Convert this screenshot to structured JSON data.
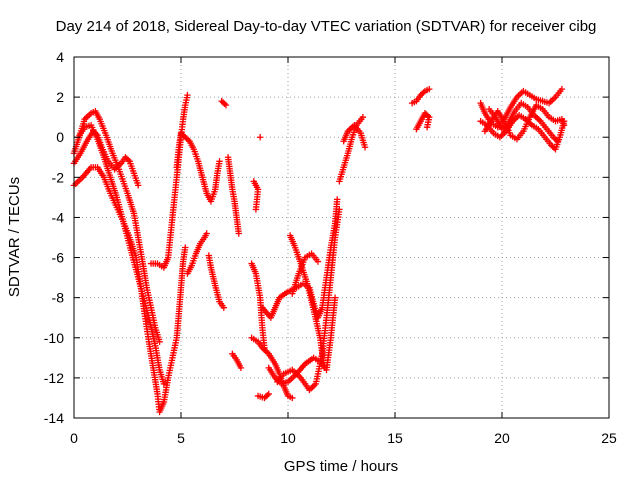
{
  "chart_data": {
    "type": "scatter",
    "title": "Day 214 of 2018, Sidereal Day-to-day VTEC variation (SDTVAR) for receiver cibg",
    "xlabel": "GPS time / hours",
    "ylabel": "SDTVAR / TECUs",
    "xlim": [
      0,
      25
    ],
    "ylim": [
      -14,
      4
    ],
    "xticks": [
      "0",
      "5",
      "10",
      "15",
      "20",
      "25"
    ],
    "yticks": [
      "-14",
      "-12",
      "-10",
      "-8",
      "-6",
      "-4",
      "-2",
      "0",
      "2",
      "4"
    ],
    "grid": true,
    "marker": "+",
    "series": [
      {
        "name": "SDTVAR",
        "color": "#ff0000",
        "traces": [
          [
            [
              0.0,
              -1.3
            ],
            [
              0.3,
              -0.8
            ],
            [
              0.6,
              -0.2
            ],
            [
              0.9,
              0.3
            ],
            [
              1.1,
              0.1
            ],
            [
              1.3,
              -0.5
            ],
            [
              1.6,
              -1.2
            ],
            [
              1.9,
              -1.6
            ],
            [
              2.2,
              -1.3
            ],
            [
              2.4,
              -1.0
            ],
            [
              2.6,
              -1.2
            ],
            [
              2.8,
              -1.8
            ],
            [
              3.0,
              -2.4
            ]
          ],
          [
            [
              0.0,
              -0.8
            ],
            [
              0.3,
              0.2
            ],
            [
              0.5,
              0.9
            ],
            [
              0.8,
              1.2
            ],
            [
              1.0,
              1.3
            ],
            [
              1.2,
              0.9
            ],
            [
              1.5,
              0.1
            ],
            [
              1.8,
              -0.8
            ],
            [
              2.1,
              -1.6
            ],
            [
              2.5,
              -2.8
            ],
            [
              2.8,
              -3.8
            ],
            [
              3.0,
              -5.0
            ],
            [
              3.2,
              -6.2
            ],
            [
              3.4,
              -7.5
            ],
            [
              3.6,
              -8.5
            ],
            [
              3.8,
              -9.5
            ],
            [
              4.0,
              -10.2
            ]
          ],
          [
            [
              0.0,
              -2.4
            ],
            [
              0.4,
              -2.0
            ],
            [
              0.8,
              -1.5
            ],
            [
              1.1,
              -1.5
            ],
            [
              1.4,
              -2.0
            ],
            [
              1.7,
              -2.8
            ],
            [
              2.0,
              -3.5
            ],
            [
              2.3,
              -4.2
            ],
            [
              2.6,
              -5.0
            ],
            [
              2.9,
              -6.0
            ],
            [
              3.1,
              -7.3
            ],
            [
              3.3,
              -8.8
            ],
            [
              3.5,
              -10.2
            ],
            [
              3.7,
              -11.5
            ],
            [
              3.9,
              -12.8
            ],
            [
              4.0,
              -13.7
            ],
            [
              4.2,
              -13.2
            ],
            [
              4.4,
              -12.0
            ],
            [
              4.6,
              -11.0
            ],
            [
              4.8,
              -10.0
            ],
            [
              4.9,
              -8.8
            ],
            [
              5.0,
              -7.5
            ],
            [
              5.1,
              -6.2
            ],
            [
              5.2,
              -5.5
            ]
          ],
          [
            [
              0.2,
              0.0
            ],
            [
              0.5,
              0.5
            ],
            [
              0.8,
              0.6
            ],
            [
              1.1,
              -0.1
            ],
            [
              1.4,
              -1.0
            ],
            [
              1.7,
              -2.0
            ],
            [
              2.0,
              -3.0
            ],
            [
              2.3,
              -4.2
            ],
            [
              2.6,
              -5.4
            ],
            [
              2.9,
              -6.6
            ],
            [
              3.2,
              -7.8
            ],
            [
              3.5,
              -9.0
            ],
            [
              3.8,
              -10.4
            ],
            [
              4.0,
              -11.6
            ],
            [
              4.2,
              -12.3
            ]
          ],
          [
            [
              3.6,
              -6.3
            ],
            [
              3.9,
              -6.3
            ],
            [
              4.2,
              -6.5
            ],
            [
              4.4,
              -6.0
            ],
            [
              4.5,
              -5.0
            ],
            [
              4.6,
              -4.0
            ],
            [
              4.7,
              -3.0
            ],
            [
              4.8,
              -2.0
            ],
            [
              4.9,
              -1.0
            ],
            [
              5.0,
              0.0
            ],
            [
              5.1,
              0.9
            ],
            [
              5.2,
              1.6
            ],
            [
              5.3,
              2.1
            ]
          ],
          [
            [
              4.8,
              -1.5
            ],
            [
              4.9,
              -0.5
            ],
            [
              5.0,
              0.2
            ],
            [
              5.2,
              0.0
            ],
            [
              5.4,
              -0.2
            ],
            [
              5.6,
              -0.6
            ],
            [
              5.8,
              -1.2
            ],
            [
              6.0,
              -2.0
            ],
            [
              6.2,
              -2.8
            ],
            [
              6.4,
              -3.2
            ],
            [
              6.6,
              -2.6
            ],
            [
              6.7,
              -1.8
            ],
            [
              6.8,
              -1.2
            ]
          ],
          [
            [
              5.3,
              -6.8
            ],
            [
              5.5,
              -6.4
            ],
            [
              5.7,
              -5.8
            ],
            [
              5.9,
              -5.3
            ],
            [
              6.1,
              -5.0
            ],
            [
              6.2,
              -4.8
            ]
          ],
          [
            [
              6.3,
              -5.9
            ],
            [
              6.4,
              -6.5
            ],
            [
              6.6,
              -7.4
            ],
            [
              6.8,
              -8.2
            ],
            [
              7.0,
              -8.5
            ]
          ],
          [
            [
              6.9,
              1.8
            ],
            [
              7.1,
              1.6
            ]
          ],
          [
            [
              7.2,
              -1.0
            ],
            [
              7.3,
              -1.8
            ],
            [
              7.4,
              -2.6
            ],
            [
              7.5,
              -3.2
            ],
            [
              7.6,
              -4.0
            ],
            [
              7.7,
              -4.8
            ]
          ],
          [
            [
              7.4,
              -10.8
            ],
            [
              7.6,
              -11.1
            ],
            [
              7.8,
              -11.5
            ]
          ],
          [
            [
              8.4,
              -2.2
            ],
            [
              8.6,
              -2.6
            ],
            [
              8.5,
              -3.6
            ]
          ],
          [
            [
              8.7,
              0.0
            ]
          ],
          [
            [
              8.3,
              -6.3
            ],
            [
              8.5,
              -6.8
            ],
            [
              8.7,
              -8.0
            ],
            [
              8.8,
              -9.5
            ],
            [
              8.9,
              -10.5
            ]
          ],
          [
            [
              8.3,
              -10.0
            ],
            [
              8.6,
              -10.2
            ],
            [
              8.8,
              -10.5
            ],
            [
              9.1,
              -10.8
            ],
            [
              9.4,
              -11.3
            ],
            [
              9.6,
              -11.8
            ],
            [
              9.8,
              -12.4
            ],
            [
              10.0,
              -12.9
            ],
            [
              10.2,
              -13.0
            ]
          ],
          [
            [
              8.6,
              -12.9
            ],
            [
              8.9,
              -13.0
            ],
            [
              9.1,
              -12.8
            ]
          ],
          [
            [
              8.8,
              -8.5
            ],
            [
              9.2,
              -9.0
            ],
            [
              9.4,
              -8.5
            ],
            [
              9.6,
              -8.0
            ],
            [
              10.0,
              -7.7
            ],
            [
              10.4,
              -7.5
            ],
            [
              10.7,
              -7.3
            ],
            [
              11.0,
              -7.5
            ],
            [
              11.2,
              -8.3
            ],
            [
              11.4,
              -9.0
            ],
            [
              11.6,
              -8.5
            ],
            [
              11.8,
              -7.0
            ],
            [
              12.0,
              -5.5
            ],
            [
              12.2,
              -4.3
            ],
            [
              12.3,
              -3.1
            ]
          ],
          [
            [
              9.1,
              -11.5
            ],
            [
              9.4,
              -12.0
            ],
            [
              9.7,
              -12.3
            ],
            [
              10.0,
              -12.2
            ],
            [
              10.4,
              -11.8
            ],
            [
              10.8,
              -11.3
            ],
            [
              11.2,
              -11.0
            ],
            [
              11.5,
              -11.2
            ],
            [
              11.8,
              -11.6
            ],
            [
              12.0,
              -10.0
            ],
            [
              12.2,
              -8.0
            ]
          ],
          [
            [
              9.5,
              -12.2
            ],
            [
              9.8,
              -11.8
            ],
            [
              10.2,
              -11.6
            ],
            [
              10.6,
              -12.0
            ],
            [
              11.0,
              -12.6
            ],
            [
              11.3,
              -12.3
            ],
            [
              11.6,
              -10.8
            ],
            [
              11.8,
              -9.0
            ],
            [
              12.0,
              -7.0
            ],
            [
              12.2,
              -5.0
            ],
            [
              12.4,
              -3.6
            ]
          ],
          [
            [
              10.1,
              -4.9
            ],
            [
              10.3,
              -5.4
            ],
            [
              10.6,
              -6.3
            ],
            [
              10.9,
              -7.3
            ],
            [
              11.2,
              -8.6
            ],
            [
              11.5,
              -10.0
            ],
            [
              11.7,
              -11.5
            ]
          ],
          [
            [
              10.2,
              -7.8
            ],
            [
              10.5,
              -6.8
            ],
            [
              10.8,
              -6.0
            ],
            [
              11.1,
              -5.8
            ],
            [
              11.4,
              -6.2
            ]
          ],
          [
            [
              12.4,
              -2.2
            ],
            [
              12.6,
              -1.5
            ],
            [
              12.8,
              -0.8
            ],
            [
              13.0,
              0.0
            ],
            [
              13.2,
              0.6
            ],
            [
              13.5,
              1.0
            ]
          ],
          [
            [
              12.6,
              -0.2
            ],
            [
              12.8,
              0.3
            ],
            [
              13.1,
              0.6
            ],
            [
              13.4,
              0.2
            ],
            [
              13.6,
              -0.5
            ]
          ],
          [
            [
              15.8,
              1.7
            ],
            [
              16.0,
              1.8
            ],
            [
              16.2,
              2.1
            ],
            [
              16.4,
              2.3
            ],
            [
              16.6,
              2.4
            ]
          ],
          [
            [
              16.0,
              0.4
            ],
            [
              16.2,
              0.8
            ],
            [
              16.4,
              1.2
            ],
            [
              16.6,
              1.0
            ],
            [
              16.5,
              0.5
            ]
          ],
          [
            [
              19.0,
              1.7
            ],
            [
              19.2,
              1.2
            ],
            [
              19.5,
              0.7
            ],
            [
              19.8,
              0.5
            ],
            [
              20.1,
              0.9
            ],
            [
              20.4,
              1.5
            ],
            [
              20.7,
              2.0
            ],
            [
              21.0,
              2.3
            ],
            [
              21.3,
              2.1
            ],
            [
              21.6,
              1.9
            ],
            [
              21.9,
              1.8
            ],
            [
              22.2,
              1.7
            ],
            [
              22.5,
              2.0
            ],
            [
              22.8,
              2.4
            ]
          ],
          [
            [
              19.0,
              0.8
            ],
            [
              19.3,
              0.6
            ],
            [
              19.6,
              0.2
            ],
            [
              19.9,
              0.0
            ],
            [
              20.2,
              0.3
            ],
            [
              20.5,
              0.8
            ],
            [
              20.8,
              1.1
            ],
            [
              21.1,
              0.9
            ],
            [
              21.4,
              0.6
            ],
            [
              21.7,
              0.4
            ],
            [
              22.0,
              0.0
            ],
            [
              22.3,
              -0.4
            ],
            [
              22.5,
              -0.6
            ],
            [
              22.7,
              0.0
            ],
            [
              22.9,
              0.8
            ]
          ],
          [
            [
              19.2,
              0.3
            ],
            [
              19.5,
              0.8
            ],
            [
              19.8,
              1.3
            ],
            [
              20.1,
              0.8
            ],
            [
              20.4,
              0.1
            ],
            [
              20.7,
              -0.1
            ],
            [
              21.0,
              0.3
            ],
            [
              21.3,
              1.0
            ],
            [
              21.6,
              1.6
            ],
            [
              21.9,
              1.4
            ],
            [
              22.2,
              1.0
            ],
            [
              22.5,
              0.8
            ],
            [
              22.8,
              0.9
            ],
            [
              22.9,
              0.6
            ]
          ],
          [
            [
              19.4,
              1.4
            ],
            [
              19.7,
              1.0
            ],
            [
              20.0,
              0.4
            ],
            [
              20.3,
              0.7
            ],
            [
              20.6,
              1.3
            ],
            [
              20.9,
              1.7
            ],
            [
              21.2,
              1.5
            ],
            [
              21.5,
              1.1
            ],
            [
              21.8,
              0.8
            ],
            [
              22.1,
              0.4
            ],
            [
              22.4,
              0.0
            ],
            [
              22.6,
              -0.2
            ]
          ]
        ]
      }
    ]
  }
}
